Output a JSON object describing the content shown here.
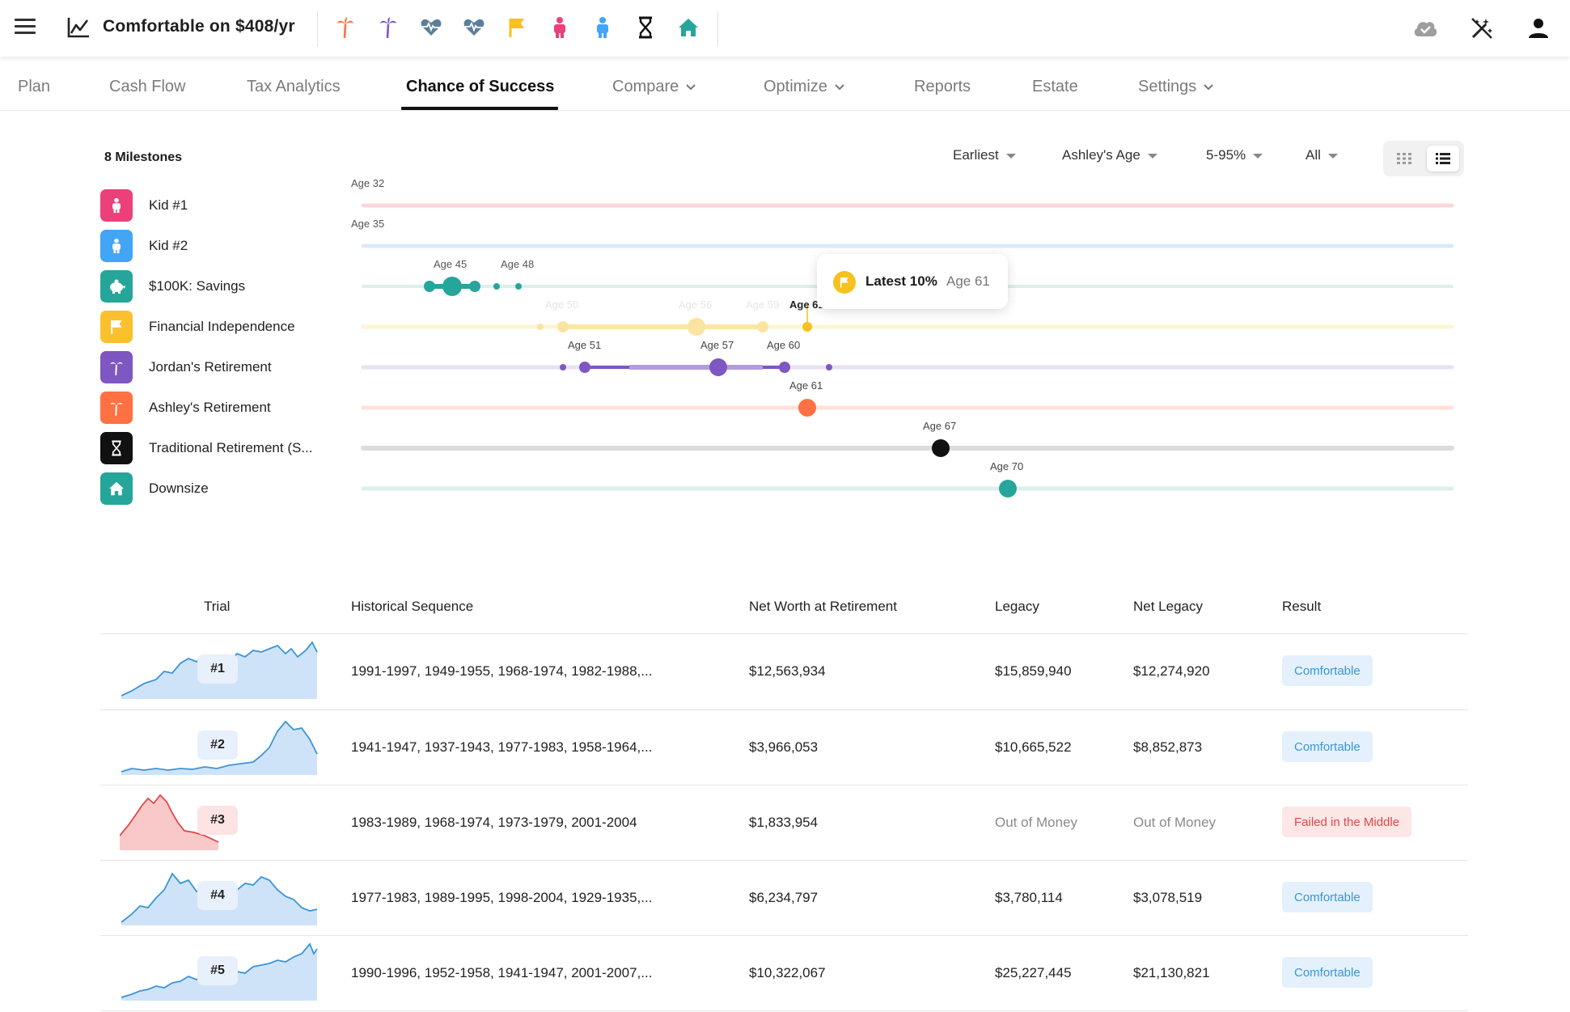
{
  "header": {
    "title": "Comfortable on $408/yr",
    "milestone_icons": [
      "palm-tree-orange-icon",
      "palm-tree-purple-icon",
      "heartbeat-icon",
      "heartbeat-icon",
      "flag-icon",
      "person-pink-icon",
      "person-blue-icon",
      "hourglass-icon",
      "house-icon"
    ],
    "right_icons": [
      "cloud-check-icon",
      "magic-wand-off-icon",
      "account-icon"
    ]
  },
  "nav": {
    "tabs": [
      {
        "label": "Plan"
      },
      {
        "label": "Cash Flow"
      },
      {
        "label": "Tax Analytics"
      },
      {
        "label": "Chance of Success"
      },
      {
        "label": "Compare"
      },
      {
        "label": "Optimize"
      },
      {
        "label": "Reports"
      },
      {
        "label": "Estate"
      },
      {
        "label": "Settings"
      }
    ],
    "active": "Chance of Success"
  },
  "milestones": {
    "header": "8 Milestones",
    "items": [
      {
        "label": "Kid #1",
        "color": "#ec407a",
        "icon": "person-icon"
      },
      {
        "label": "Kid #2",
        "color": "#42a5f5",
        "icon": "person-icon"
      },
      {
        "label": "$100K: Savings",
        "color": "#26a69a",
        "icon": "piggy-bank-icon"
      },
      {
        "label": "Financial Independence",
        "color": "#fbc02d",
        "icon": "flag-icon"
      },
      {
        "label": "Jordan's Retirement",
        "color": "#7e57c2",
        "icon": "palm-tree-icon"
      },
      {
        "label": "Ashley's Retirement",
        "color": "#ff7043",
        "icon": "palm-tree-icon"
      },
      {
        "label": "Traditional Retirement (S...",
        "color": "#111111",
        "icon": "hourglass-icon"
      },
      {
        "label": "Downsize",
        "color": "#26a69a",
        "icon": "house-icon"
      }
    ]
  },
  "controls": {
    "sort": "Earliest",
    "axis": "Ashley's Age",
    "range": "5-95%",
    "filter": "All"
  },
  "timeline": {
    "rows": [
      {
        "points": [
          {
            "age": 32,
            "label": "Age 32"
          }
        ]
      },
      {
        "points": [
          {
            "age": 35,
            "label": "Age 35"
          }
        ]
      },
      {
        "points": [
          {
            "age": 45,
            "label": "Age 45"
          },
          {
            "age": 48,
            "label": "Age 48"
          }
        ]
      },
      {
        "points": [
          {
            "age": 50,
            "label": "Age 50"
          },
          {
            "age": 56,
            "label": "Age 56"
          },
          {
            "age": 59,
            "label": "Age 59"
          },
          {
            "age": 61,
            "label": "Age 61"
          }
        ]
      },
      {
        "points": [
          {
            "age": 51,
            "label": "Age 51"
          },
          {
            "age": 57,
            "label": "Age 57"
          },
          {
            "age": 60,
            "label": "Age 60"
          }
        ]
      },
      {
        "points": [
          {
            "age": 61,
            "label": "Age 61"
          }
        ]
      },
      {
        "points": [
          {
            "age": 67,
            "label": "Age 67"
          }
        ]
      },
      {
        "points": [
          {
            "age": 70,
            "label": "Age 70"
          }
        ]
      }
    ],
    "tooltip": {
      "title": "Latest 10%",
      "age": "Age 61"
    }
  },
  "table": {
    "headers": [
      "Trial",
      "Historical Sequence",
      "Net Worth at Retirement",
      "Legacy",
      "Net Legacy",
      "Result"
    ],
    "rows": [
      {
        "trial": "#1",
        "sequence": "1991-1997, 1949-1955, 1968-1974, 1982-1988,...",
        "net_worth": "$12,563,934",
        "legacy": "$15,859,940",
        "net_legacy": "$12,274,920",
        "result": "Comfortable",
        "status": "ok"
      },
      {
        "trial": "#2",
        "sequence": "1941-1947, 1937-1943, 1977-1983, 1958-1964,...",
        "net_worth": "$3,966,053",
        "legacy": "$10,665,522",
        "net_legacy": "$8,852,873",
        "result": "Comfortable",
        "status": "ok"
      },
      {
        "trial": "#3",
        "sequence": "1983-1989, 1968-1974, 1973-1979, 2001-2004",
        "net_worth": "$1,833,954",
        "legacy": "Out of Money",
        "net_legacy": "Out of Money",
        "result": "Failed in the Middle",
        "status": "fail"
      },
      {
        "trial": "#4",
        "sequence": "1977-1983, 1989-1995, 1998-2004, 1929-1935,...",
        "net_worth": "$6,234,797",
        "legacy": "$3,780,114",
        "net_legacy": "$3,078,519",
        "result": "Comfortable",
        "status": "ok"
      },
      {
        "trial": "#5",
        "sequence": "1990-1996, 1952-1958, 1941-1947, 2001-2007,...",
        "net_worth": "$10,322,067",
        "legacy": "$25,227,445",
        "net_legacy": "$21,130,821",
        "result": "Comfortable",
        "status": "ok"
      }
    ]
  }
}
